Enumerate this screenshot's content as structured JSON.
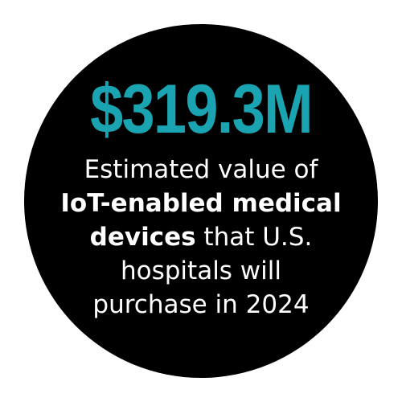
{
  "stat": {
    "value": "$319.3M",
    "color": "#1aa3b0"
  },
  "caption": {
    "line1": "Estimated value of",
    "line2_bold": "IoT-enabled medical",
    "line3_bold": "devices",
    "line3_rest": " that U.S.",
    "line4": "hospitals will",
    "line5": "purchase in 2024"
  },
  "colors": {
    "circle": "#000000",
    "text": "#ffffff",
    "background": "#ffffff"
  }
}
